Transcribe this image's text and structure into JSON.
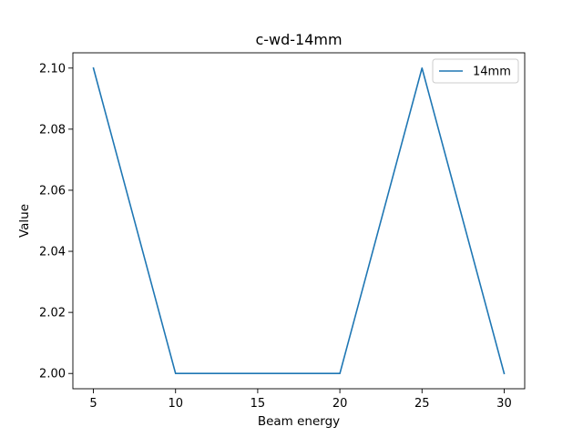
{
  "chart_data": {
    "type": "line",
    "title": "c-wd-14mm",
    "xlabel": "Beam energy",
    "ylabel": "Value",
    "x": [
      5,
      10,
      15,
      20,
      25,
      30
    ],
    "series": [
      {
        "name": "14mm",
        "values": [
          2.1,
          2.0,
          2.0,
          2.0,
          2.1,
          2.0
        ],
        "color": "#1f77b4"
      }
    ],
    "xticks": [
      5,
      10,
      15,
      20,
      25,
      30
    ],
    "yticks": [
      2.0,
      2.02,
      2.04,
      2.06,
      2.08,
      2.1
    ],
    "xtick_labels": [
      "5",
      "10",
      "15",
      "20",
      "25",
      "30"
    ],
    "ytick_labels": [
      "2.00",
      "2.02",
      "2.04",
      "2.06",
      "2.08",
      "2.10"
    ],
    "xlim": [
      3.75,
      31.25
    ],
    "ylim": [
      1.995,
      2.105
    ],
    "grid": false,
    "legend_position": "top-right"
  }
}
